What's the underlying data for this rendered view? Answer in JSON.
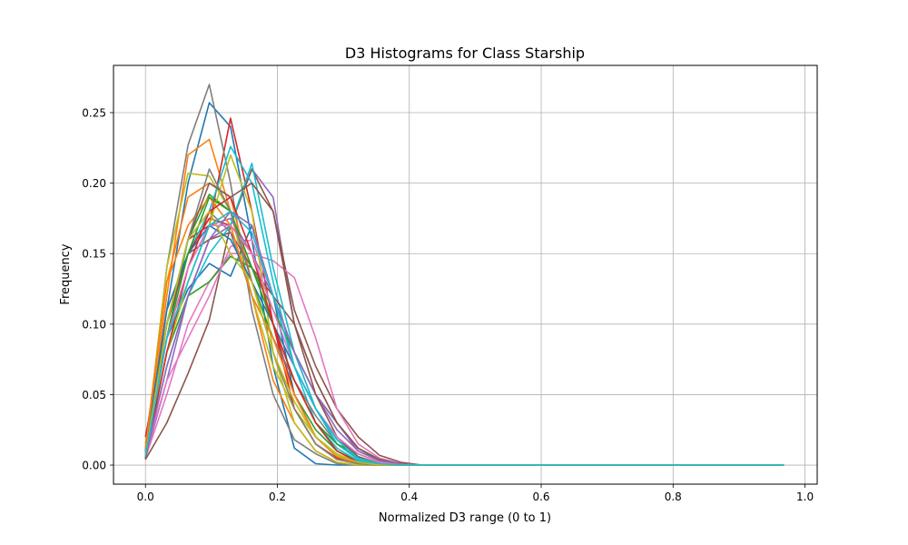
{
  "chart_data": {
    "type": "line",
    "title": "D3 Histograms for Class Starship",
    "xlabel": "Normalized D3 range (0 to 1)",
    "ylabel": "Frequency",
    "xlim": [
      -0.0485,
      1.0185
    ],
    "ylim": [
      -0.0135,
      0.2835
    ],
    "xticks": [
      "0.0",
      "0.2",
      "0.4",
      "0.6",
      "0.8",
      "1.0"
    ],
    "yticks": [
      "0.00",
      "0.05",
      "0.10",
      "0.15",
      "0.20",
      "0.25"
    ],
    "grid": true,
    "x": [
      0.0,
      0.0323,
      0.0645,
      0.0968,
      0.129,
      0.1613,
      0.1935,
      0.2258,
      0.2581,
      0.2903,
      0.3226,
      0.3548,
      0.3871,
      0.4194,
      0.4516,
      0.4839,
      0.5161,
      0.5484,
      0.5806,
      0.6129,
      0.6452,
      0.6774,
      0.7097,
      0.7419,
      0.7742,
      0.8065,
      0.8387,
      0.871,
      0.9032,
      0.9355,
      0.9677
    ],
    "series": [
      {
        "color": "#1f77b4",
        "values": [
          0.009,
          0.11,
          0.2,
          0.257,
          0.24,
          0.16,
          0.07,
          0.012,
          0.001,
          0.0,
          0,
          0,
          0,
          0,
          0,
          0,
          0,
          0,
          0,
          0,
          0,
          0,
          0,
          0,
          0,
          0,
          0,
          0,
          0,
          0,
          0
        ]
      },
      {
        "color": "#ff7f0e",
        "values": [
          0.007,
          0.12,
          0.22,
          0.231,
          0.18,
          0.12,
          0.06,
          0.03,
          0.01,
          0.002,
          0.0,
          0,
          0,
          0,
          0,
          0,
          0,
          0,
          0,
          0,
          0,
          0,
          0,
          0,
          0,
          0,
          0,
          0,
          0,
          0,
          0
        ]
      },
      {
        "color": "#2ca02c",
        "values": [
          0.006,
          0.09,
          0.16,
          0.192,
          0.18,
          0.13,
          0.09,
          0.05,
          0.025,
          0.01,
          0.003,
          0.001,
          0,
          0,
          0,
          0,
          0,
          0,
          0,
          0,
          0,
          0,
          0,
          0,
          0,
          0,
          0,
          0,
          0,
          0,
          0
        ]
      },
      {
        "color": "#d62728",
        "values": [
          0.008,
          0.1,
          0.16,
          0.17,
          0.246,
          0.18,
          0.1,
          0.04,
          0.015,
          0.005,
          0.001,
          0,
          0,
          0,
          0,
          0,
          0,
          0,
          0,
          0,
          0,
          0,
          0,
          0,
          0,
          0,
          0,
          0,
          0,
          0,
          0
        ]
      },
      {
        "color": "#9467bd",
        "values": [
          0.005,
          0.06,
          0.12,
          0.16,
          0.17,
          0.21,
          0.19,
          0.1,
          0.06,
          0.03,
          0.01,
          0.003,
          0.001,
          0,
          0,
          0,
          0,
          0,
          0,
          0,
          0,
          0,
          0,
          0,
          0,
          0,
          0,
          0,
          0,
          0,
          0
        ]
      },
      {
        "color": "#8c564b",
        "values": [
          0.004,
          0.03,
          0.065,
          0.103,
          0.17,
          0.21,
          0.18,
          0.11,
          0.07,
          0.04,
          0.02,
          0.007,
          0.002,
          0,
          0,
          0,
          0,
          0,
          0,
          0,
          0,
          0,
          0,
          0,
          0,
          0,
          0,
          0,
          0,
          0,
          0
        ]
      },
      {
        "color": "#e377c2",
        "values": [
          0.005,
          0.05,
          0.1,
          0.13,
          0.15,
          0.15,
          0.145,
          0.133,
          0.09,
          0.04,
          0.015,
          0.005,
          0.001,
          0,
          0,
          0,
          0,
          0,
          0,
          0,
          0,
          0,
          0,
          0,
          0,
          0,
          0,
          0,
          0,
          0,
          0
        ]
      },
      {
        "color": "#7f7f7f",
        "values": [
          0.01,
          0.14,
          0.227,
          0.27,
          0.2,
          0.11,
          0.05,
          0.018,
          0.008,
          0.001,
          0.0,
          0,
          0,
          0,
          0,
          0,
          0,
          0,
          0,
          0,
          0,
          0,
          0,
          0,
          0,
          0,
          0,
          0,
          0,
          0,
          0
        ]
      },
      {
        "color": "#bcbd22",
        "values": [
          0.01,
          0.14,
          0.207,
          0.205,
          0.18,
          0.12,
          0.07,
          0.04,
          0.02,
          0.008,
          0.002,
          0.0,
          0,
          0,
          0,
          0,
          0,
          0,
          0,
          0,
          0,
          0,
          0,
          0,
          0,
          0,
          0,
          0,
          0,
          0,
          0
        ]
      },
      {
        "color": "#17becf",
        "values": [
          0.008,
          0.1,
          0.15,
          0.18,
          0.226,
          0.2,
          0.13,
          0.07,
          0.03,
          0.012,
          0.003,
          0.001,
          0,
          0,
          0,
          0,
          0,
          0,
          0,
          0,
          0,
          0,
          0,
          0,
          0,
          0,
          0,
          0,
          0,
          0,
          0
        ]
      },
      {
        "color": "#1f77b4",
        "values": [
          0.012,
          0.09,
          0.125,
          0.143,
          0.134,
          0.17,
          0.12,
          0.05,
          0.02,
          0.006,
          0.001,
          0,
          0,
          0,
          0,
          0,
          0,
          0,
          0,
          0,
          0,
          0,
          0,
          0,
          0,
          0,
          0,
          0,
          0,
          0,
          0
        ]
      },
      {
        "color": "#ff7f0e",
        "values": [
          0.015,
          0.13,
          0.19,
          0.2,
          0.19,
          0.13,
          0.08,
          0.04,
          0.015,
          0.004,
          0.001,
          0,
          0,
          0,
          0,
          0,
          0,
          0,
          0,
          0,
          0,
          0,
          0,
          0,
          0,
          0,
          0,
          0,
          0,
          0,
          0
        ]
      },
      {
        "color": "#2ca02c",
        "values": [
          0.006,
          0.08,
          0.12,
          0.13,
          0.148,
          0.14,
          0.11,
          0.08,
          0.05,
          0.03,
          0.012,
          0.003,
          0.001,
          0,
          0,
          0,
          0,
          0,
          0,
          0,
          0,
          0,
          0,
          0,
          0,
          0,
          0,
          0,
          0,
          0,
          0
        ]
      },
      {
        "color": "#d62728",
        "values": [
          0.02,
          0.1,
          0.15,
          0.175,
          0.17,
          0.15,
          0.1,
          0.05,
          0.02,
          0.006,
          0.001,
          0,
          0,
          0,
          0,
          0,
          0,
          0,
          0,
          0,
          0,
          0,
          0,
          0,
          0,
          0,
          0,
          0,
          0,
          0,
          0
        ]
      },
      {
        "color": "#9467bd",
        "values": [
          0.006,
          0.09,
          0.14,
          0.17,
          0.175,
          0.15,
          0.12,
          0.08,
          0.05,
          0.03,
          0.012,
          0.004,
          0.001,
          0,
          0,
          0,
          0,
          0,
          0,
          0,
          0,
          0,
          0,
          0,
          0,
          0,
          0,
          0,
          0,
          0,
          0
        ]
      },
      {
        "color": "#8c564b",
        "values": [
          0.006,
          0.1,
          0.15,
          0.16,
          0.165,
          0.14,
          0.12,
          0.1,
          0.06,
          0.03,
          0.012,
          0.004,
          0.001,
          0,
          0,
          0,
          0,
          0,
          0,
          0,
          0,
          0,
          0,
          0,
          0,
          0,
          0,
          0,
          0,
          0,
          0
        ]
      },
      {
        "color": "#e377c2",
        "values": [
          0.008,
          0.06,
          0.09,
          0.12,
          0.155,
          0.16,
          0.12,
          0.08,
          0.04,
          0.015,
          0.004,
          0.001,
          0,
          0,
          0,
          0,
          0,
          0,
          0,
          0,
          0,
          0,
          0,
          0,
          0,
          0,
          0,
          0,
          0,
          0,
          0
        ]
      },
      {
        "color": "#7f7f7f",
        "values": [
          0.007,
          0.1,
          0.16,
          0.18,
          0.165,
          0.12,
          0.09,
          0.06,
          0.035,
          0.015,
          0.005,
          0.001,
          0,
          0,
          0,
          0,
          0,
          0,
          0,
          0,
          0,
          0,
          0,
          0,
          0,
          0,
          0,
          0,
          0,
          0,
          0
        ]
      },
      {
        "color": "#bcbd22",
        "values": [
          0.006,
          0.08,
          0.13,
          0.17,
          0.22,
          0.18,
          0.08,
          0.03,
          0.01,
          0.002,
          0.0,
          0,
          0,
          0,
          0,
          0,
          0,
          0,
          0,
          0,
          0,
          0,
          0,
          0,
          0,
          0,
          0,
          0,
          0,
          0,
          0
        ]
      },
      {
        "color": "#17becf",
        "values": [
          0.007,
          0.07,
          0.12,
          0.15,
          0.17,
          0.214,
          0.14,
          0.08,
          0.04,
          0.015,
          0.004,
          0.001,
          0,
          0,
          0,
          0,
          0,
          0,
          0,
          0,
          0,
          0,
          0,
          0,
          0,
          0,
          0,
          0,
          0,
          0,
          0
        ]
      },
      {
        "color": "#1f77b4",
        "values": [
          0.01,
          0.11,
          0.15,
          0.17,
          0.16,
          0.13,
          0.1,
          0.07,
          0.04,
          0.018,
          0.006,
          0.001,
          0,
          0,
          0,
          0,
          0,
          0,
          0,
          0,
          0,
          0,
          0,
          0,
          0,
          0,
          0,
          0,
          0,
          0,
          0
        ]
      },
      {
        "color": "#ff7f0e",
        "values": [
          0.012,
          0.13,
          0.17,
          0.19,
          0.17,
          0.12,
          0.09,
          0.05,
          0.02,
          0.006,
          0.001,
          0,
          0,
          0,
          0,
          0,
          0,
          0,
          0,
          0,
          0,
          0,
          0,
          0,
          0,
          0,
          0,
          0,
          0,
          0,
          0
        ]
      },
      {
        "color": "#2ca02c",
        "values": [
          0.008,
          0.09,
          0.15,
          0.19,
          0.18,
          0.14,
          0.1,
          0.06,
          0.03,
          0.015,
          0.008,
          0.002,
          0,
          0,
          0,
          0,
          0,
          0,
          0,
          0,
          0,
          0,
          0,
          0,
          0,
          0,
          0,
          0,
          0,
          0,
          0
        ]
      },
      {
        "color": "#d62728",
        "values": [
          0.005,
          0.08,
          0.14,
          0.18,
          0.19,
          0.15,
          0.1,
          0.06,
          0.03,
          0.01,
          0.002,
          0.0,
          0,
          0,
          0,
          0,
          0,
          0,
          0,
          0,
          0,
          0,
          0,
          0,
          0,
          0,
          0,
          0,
          0,
          0,
          0
        ]
      },
      {
        "color": "#9467bd",
        "values": [
          0.006,
          0.07,
          0.12,
          0.16,
          0.18,
          0.17,
          0.12,
          0.08,
          0.05,
          0.025,
          0.01,
          0.003,
          0.001,
          0,
          0,
          0,
          0,
          0,
          0,
          0,
          0,
          0,
          0,
          0,
          0,
          0,
          0,
          0,
          0,
          0,
          0
        ]
      },
      {
        "color": "#8c564b",
        "values": [
          0.004,
          0.1,
          0.16,
          0.2,
          0.19,
          0.2,
          0.18,
          0.1,
          0.05,
          0.02,
          0.006,
          0.001,
          0,
          0,
          0,
          0,
          0,
          0,
          0,
          0,
          0,
          0,
          0,
          0,
          0,
          0,
          0,
          0,
          0,
          0,
          0
        ]
      },
      {
        "color": "#e377c2",
        "values": [
          0.007,
          0.09,
          0.14,
          0.17,
          0.17,
          0.15,
          0.11,
          0.07,
          0.04,
          0.02,
          0.008,
          0.002,
          0,
          0,
          0,
          0,
          0,
          0,
          0,
          0,
          0,
          0,
          0,
          0,
          0,
          0,
          0,
          0,
          0,
          0,
          0
        ]
      },
      {
        "color": "#7f7f7f",
        "values": [
          0.009,
          0.1,
          0.16,
          0.21,
          0.18,
          0.13,
          0.08,
          0.04,
          0.015,
          0.004,
          0.001,
          0,
          0,
          0,
          0,
          0,
          0,
          0,
          0,
          0,
          0,
          0,
          0,
          0,
          0,
          0,
          0,
          0,
          0,
          0,
          0
        ]
      },
      {
        "color": "#bcbd22",
        "values": [
          0.007,
          0.1,
          0.16,
          0.18,
          0.15,
          0.13,
          0.08,
          0.045,
          0.02,
          0.007,
          0.002,
          0,
          0,
          0,
          0,
          0,
          0,
          0,
          0,
          0,
          0,
          0,
          0,
          0,
          0,
          0,
          0,
          0,
          0,
          0,
          0
        ]
      },
      {
        "color": "#17becf",
        "values": [
          0.006,
          0.09,
          0.13,
          0.17,
          0.18,
          0.165,
          0.12,
          0.07,
          0.04,
          0.018,
          0.005,
          0.001,
          0,
          0,
          0,
          0,
          0,
          0,
          0,
          0,
          0,
          0,
          0,
          0,
          0,
          0,
          0,
          0,
          0,
          0,
          0
        ]
      }
    ]
  }
}
